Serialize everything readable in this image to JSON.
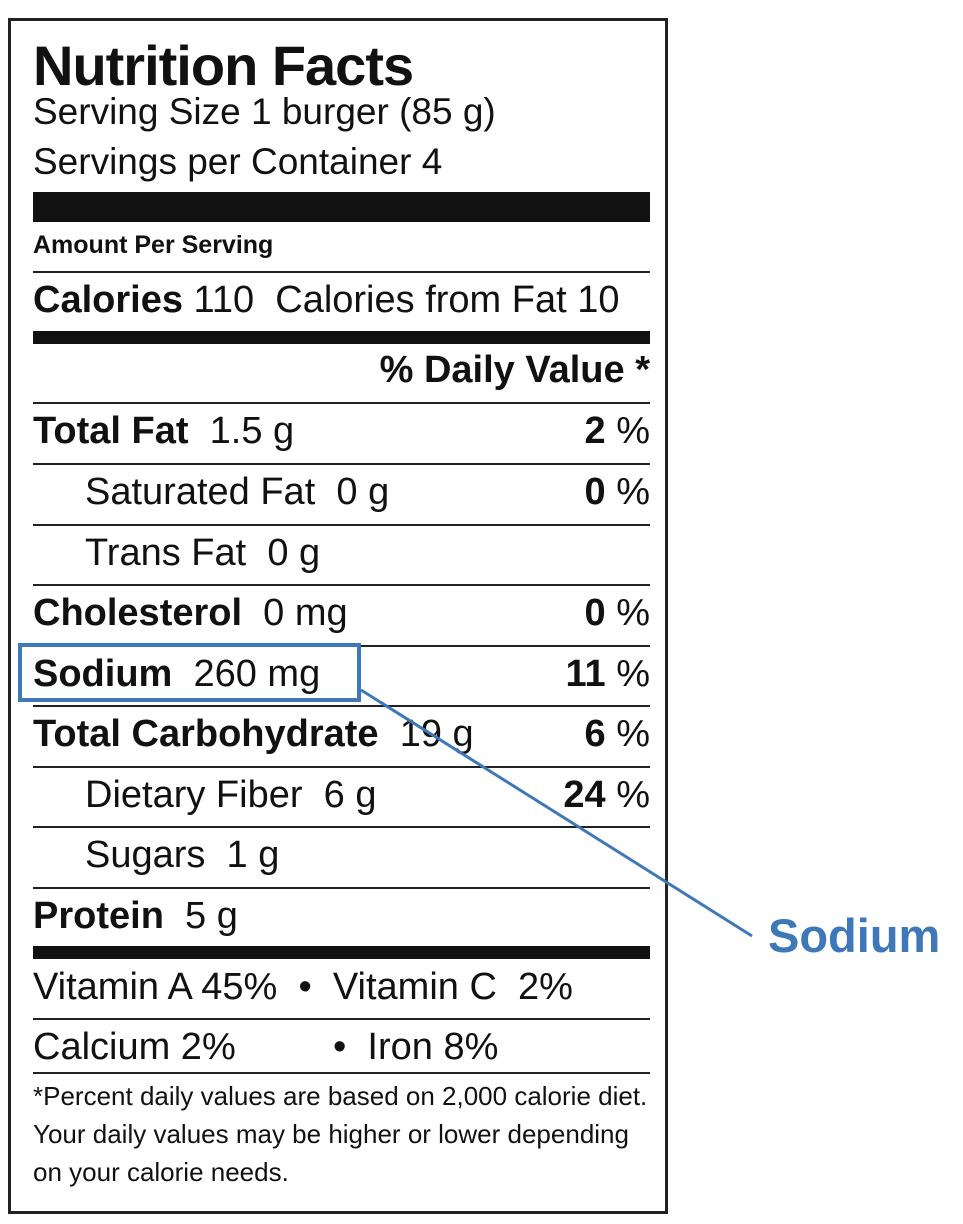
{
  "title": "Nutrition Facts",
  "serving_size": "Serving Size 1 burger (85 g)",
  "servings_per_container": "Servings per Container 4",
  "amount_per_serving": "Amount Per Serving",
  "calories": {
    "label": "Calories",
    "value": "110",
    "from_fat": "Calories from Fat 10"
  },
  "daily_value_header": "% Daily Value *",
  "nutrients": {
    "total_fat": {
      "name": "Total Fat",
      "amount": "1.5 g",
      "dv": "2",
      "pct": "%"
    },
    "saturated_fat": {
      "name": "Saturated Fat",
      "amount": "0 g",
      "dv": "0",
      "pct": "%"
    },
    "trans_fat": {
      "name": "Trans Fat",
      "amount": "0 g"
    },
    "cholesterol": {
      "name": "Cholesterol",
      "amount": "0 mg",
      "dv": "0",
      "pct": "%"
    },
    "sodium": {
      "name": "Sodium",
      "amount": "260 mg",
      "dv": "11",
      "pct": "%"
    },
    "total_carbohydrate": {
      "name": "Total Carbohydrate",
      "amount": "19 g",
      "dv": "6",
      "pct": "%"
    },
    "dietary_fiber": {
      "name": "Dietary Fiber",
      "amount": "6 g",
      "dv": "24",
      "pct": "%"
    },
    "sugars": {
      "name": "Sugars",
      "amount": "1 g"
    },
    "protein": {
      "name": "Protein",
      "amount": "5 g"
    }
  },
  "vitamins": {
    "row1": "Vitamin A 45%  •  Vitamin C  2%",
    "row2_left": "Calcium 2%",
    "row2_right": "•  Iron 8%"
  },
  "footnote": "*Percent daily values are based on 2,000 calorie diet. Your daily values may be higher or lower depending on your calorie needs.",
  "callout": {
    "label": "Sodium",
    "color": "#3f78b9"
  }
}
